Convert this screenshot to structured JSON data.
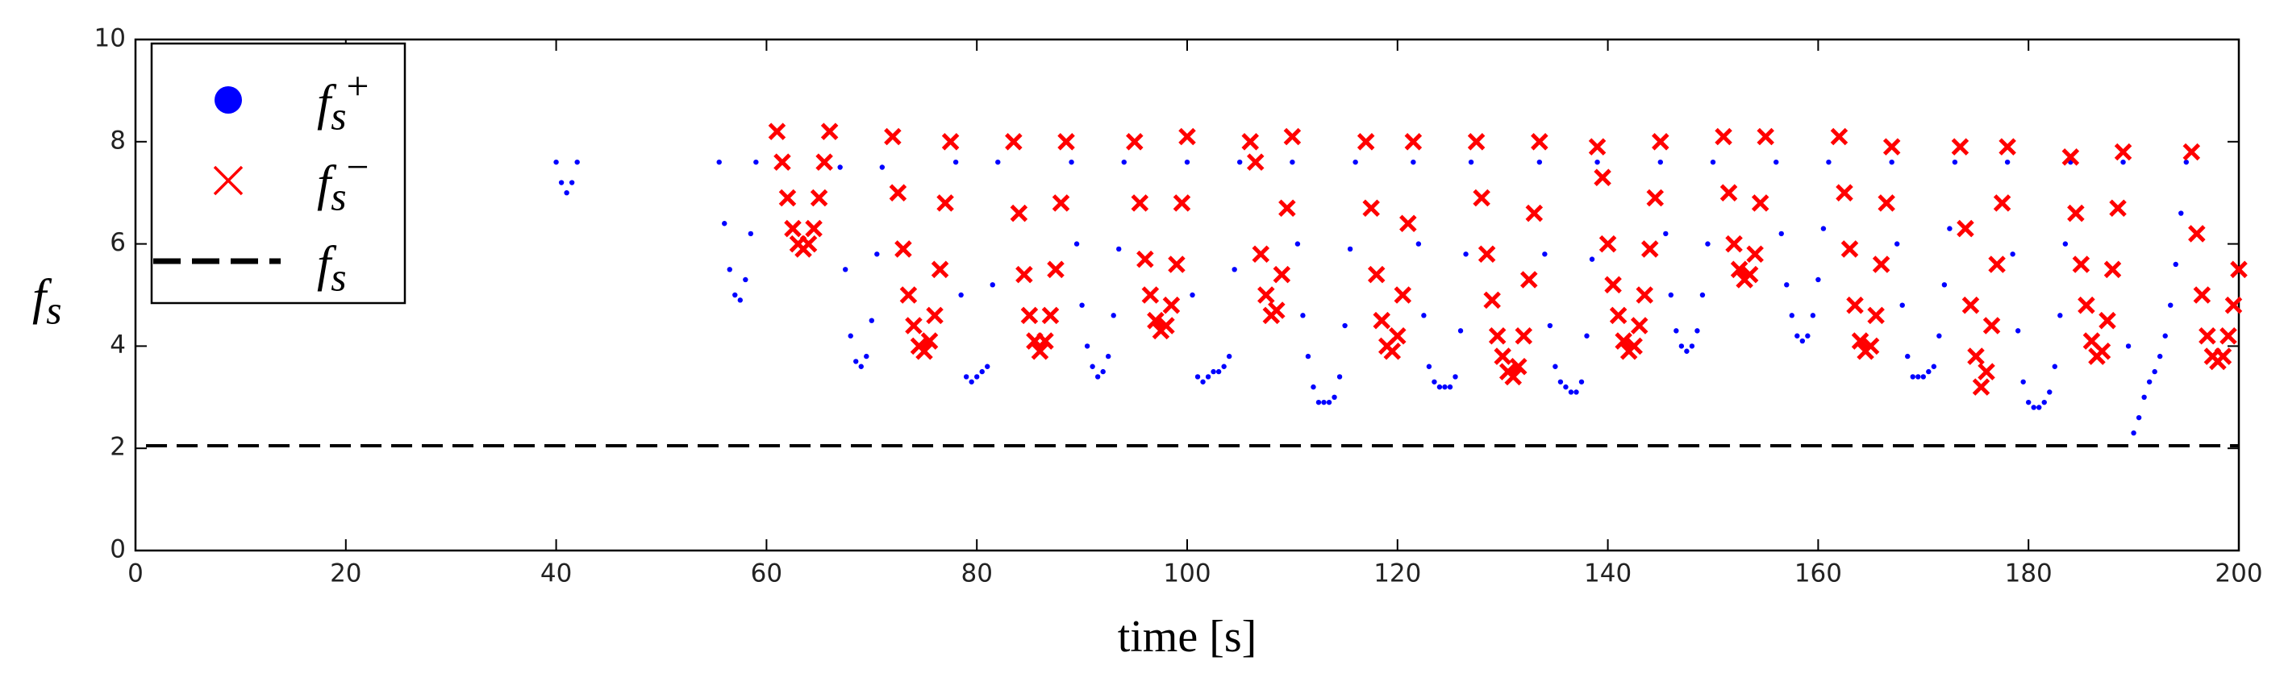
{
  "chart_data": {
    "type": "scatter",
    "xlabel": "time [s]",
    "ylabel": "fs",
    "xlim": [
      0,
      200
    ],
    "xticks": [
      0,
      20,
      40,
      60,
      80,
      100,
      120,
      140,
      160,
      180,
      200
    ],
    "ylim": [
      0,
      10
    ],
    "yticks": [
      0,
      2,
      4,
      6,
      8,
      10
    ],
    "grid": false,
    "legend": "upper left",
    "series": [
      {
        "name": "fs+",
        "color": "#0000ff",
        "marker": "circle",
        "x": [
          40,
          40.5,
          41,
          41.5,
          42,
          55.5,
          56,
          56.5,
          57,
          57.5,
          58,
          58.5,
          59,
          67,
          67.5,
          68,
          68.5,
          69,
          69.5,
          70,
          70.5,
          71,
          78,
          78.5,
          79,
          79.5,
          80,
          80.5,
          81,
          81.5,
          82,
          89,
          89.5,
          90,
          90.5,
          91,
          91.5,
          92,
          92.5,
          93,
          93.5,
          94,
          100,
          100.5,
          101,
          101.5,
          102,
          102.5,
          103,
          103.5,
          104,
          104.5,
          105,
          110,
          110.5,
          111,
          111.5,
          112,
          112.5,
          113,
          113.5,
          114,
          114.5,
          115,
          115.5,
          116,
          121.5,
          122,
          122.5,
          123,
          123.5,
          124,
          124.5,
          125,
          125.5,
          126,
          126.5,
          127,
          133.5,
          134,
          134.5,
          135,
          135.5,
          136,
          136.5,
          137,
          137.5,
          138,
          138.5,
          139,
          145,
          145.5,
          146,
          146.5,
          147,
          147.5,
          148,
          148.5,
          149,
          149.5,
          150,
          156,
          156.5,
          157,
          157.5,
          158,
          158.5,
          159,
          159.5,
          160,
          160.5,
          161,
          167,
          167.5,
          168,
          168.5,
          169,
          169.5,
          170,
          170.5,
          171,
          171.5,
          172,
          172.5,
          173,
          178,
          178.5,
          179,
          179.5,
          180,
          180.5,
          181,
          181.5,
          182,
          182.5,
          183,
          183.5,
          184,
          189,
          189.5,
          190,
          190.5,
          191,
          191.5,
          192,
          192.5,
          193,
          193.5,
          194,
          194.5,
          195
        ],
        "values": [
          7.6,
          7.2,
          7.0,
          7.2,
          7.6,
          7.6,
          6.4,
          5.5,
          5.0,
          4.9,
          5.3,
          6.2,
          7.6,
          7.5,
          5.5,
          4.2,
          3.7,
          3.6,
          3.8,
          4.5,
          5.8,
          7.5,
          7.6,
          5.0,
          3.4,
          3.3,
          3.4,
          3.5,
          3.6,
          5.2,
          7.6,
          7.6,
          6.0,
          4.8,
          4.0,
          3.6,
          3.4,
          3.5,
          3.8,
          4.6,
          5.9,
          7.6,
          7.6,
          5.0,
          3.4,
          3.3,
          3.4,
          3.5,
          3.5,
          3.6,
          3.8,
          5.5,
          7.6,
          7.6,
          6.0,
          4.6,
          3.8,
          3.2,
          2.9,
          2.9,
          2.9,
          3.0,
          3.4,
          4.4,
          5.9,
          7.6,
          7.6,
          6.0,
          4.6,
          3.6,
          3.3,
          3.2,
          3.2,
          3.2,
          3.4,
          4.3,
          5.8,
          7.6,
          7.6,
          5.8,
          4.4,
          3.6,
          3.3,
          3.2,
          3.1,
          3.1,
          3.3,
          4.2,
          5.7,
          7.6,
          7.6,
          6.2,
          5.0,
          4.3,
          4.0,
          3.9,
          4.0,
          4.3,
          5.0,
          6.0,
          7.6,
          7.6,
          6.2,
          5.2,
          4.6,
          4.2,
          4.1,
          4.2,
          4.6,
          5.3,
          6.3,
          7.6,
          7.6,
          6.0,
          4.8,
          3.8,
          3.4,
          3.4,
          3.4,
          3.5,
          3.6,
          4.2,
          5.2,
          6.3,
          7.6,
          7.6,
          5.8,
          4.3,
          3.3,
          2.9,
          2.8,
          2.8,
          2.9,
          3.1,
          3.6,
          4.6,
          6.0,
          7.6,
          7.6,
          4.0,
          2.3,
          2.6,
          3.0,
          3.3,
          3.5,
          3.8,
          4.2,
          4.8,
          5.6,
          6.6,
          7.6
        ]
      },
      {
        "name": "fs−",
        "color": "#ff0000",
        "marker": "cross",
        "x": [
          61,
          61.5,
          62,
          62.5,
          63,
          63.5,
          64,
          64.5,
          65,
          65.5,
          66,
          72,
          72.5,
          73,
          73.5,
          74,
          74.5,
          75,
          75.5,
          76,
          76.5,
          77,
          77.5,
          83.5,
          84,
          84.5,
          85,
          85.5,
          86,
          86.5,
          87,
          87.5,
          88,
          88.5,
          95,
          95.5,
          96,
          96.5,
          97,
          97.5,
          98,
          98.5,
          99,
          99.5,
          100,
          106,
          106.5,
          107,
          107.5,
          108,
          108.5,
          109,
          109.5,
          110,
          117,
          117.5,
          118,
          118.5,
          119,
          119.5,
          120,
          120.5,
          121,
          121.5,
          127.5,
          128,
          128.5,
          129,
          129.5,
          130,
          130.5,
          131,
          131.5,
          132,
          132.5,
          133,
          133.5,
          139,
          139.5,
          140,
          140.5,
          141,
          141.5,
          142,
          142.5,
          143,
          143.5,
          144,
          144.5,
          145,
          151,
          151.5,
          152,
          152.5,
          153,
          153.5,
          154,
          154.5,
          155,
          162,
          162.5,
          163,
          163.5,
          164,
          164.5,
          165,
          165.5,
          166,
          166.5,
          167,
          173.5,
          174,
          174.5,
          175,
          175.5,
          176,
          176.5,
          177,
          177.5,
          178,
          184,
          184.5,
          185,
          185.5,
          186,
          186.5,
          187,
          187.5,
          188,
          188.5,
          189,
          195.5,
          196,
          196.5,
          197,
          197.5,
          198,
          198.5,
          199,
          199.5,
          200
        ],
        "values": [
          8.2,
          7.6,
          6.9,
          6.3,
          6.0,
          5.9,
          6.0,
          6.3,
          6.9,
          7.6,
          8.2,
          8.1,
          7.0,
          5.9,
          5.0,
          4.4,
          4.0,
          3.9,
          4.1,
          4.6,
          5.5,
          6.8,
          8.0,
          8.0,
          6.6,
          5.4,
          4.6,
          4.1,
          3.9,
          4.1,
          4.6,
          5.5,
          6.8,
          8.0,
          8.0,
          6.8,
          5.7,
          5.0,
          4.5,
          4.3,
          4.4,
          4.8,
          5.6,
          6.8,
          8.1,
          8.0,
          7.6,
          5.8,
          5.0,
          4.6,
          4.7,
          5.4,
          6.7,
          8.1,
          8.0,
          6.7,
          5.4,
          4.5,
          4.0,
          3.9,
          4.2,
          5.0,
          6.4,
          8.0,
          8.0,
          6.9,
          5.8,
          4.9,
          4.2,
          3.8,
          3.5,
          3.4,
          3.6,
          4.2,
          5.3,
          6.6,
          8.0,
          7.9,
          7.3,
          6.0,
          5.2,
          4.6,
          4.1,
          3.9,
          4.0,
          4.4,
          5.0,
          5.9,
          6.9,
          8.0,
          8.1,
          7.0,
          6.0,
          5.5,
          5.3,
          5.4,
          5.8,
          6.8,
          8.1,
          8.1,
          7.0,
          5.9,
          4.8,
          4.1,
          3.9,
          4.0,
          4.6,
          5.6,
          6.8,
          7.9,
          7.9,
          6.3,
          4.8,
          3.8,
          3.2,
          3.5,
          4.4,
          5.6,
          6.8,
          7.9,
          7.7,
          6.6,
          5.6,
          4.8,
          4.1,
          3.8,
          3.9,
          4.5,
          5.5,
          6.7,
          7.8,
          7.8,
          6.2,
          5.0,
          4.2,
          3.8,
          3.7,
          3.8,
          4.2,
          4.8,
          5.5
        ]
      },
      {
        "name": "fs",
        "color": "#000000",
        "marker": "dashed",
        "x": [
          1,
          200
        ],
        "values": [
          2.05,
          2.05
        ]
      }
    ]
  }
}
